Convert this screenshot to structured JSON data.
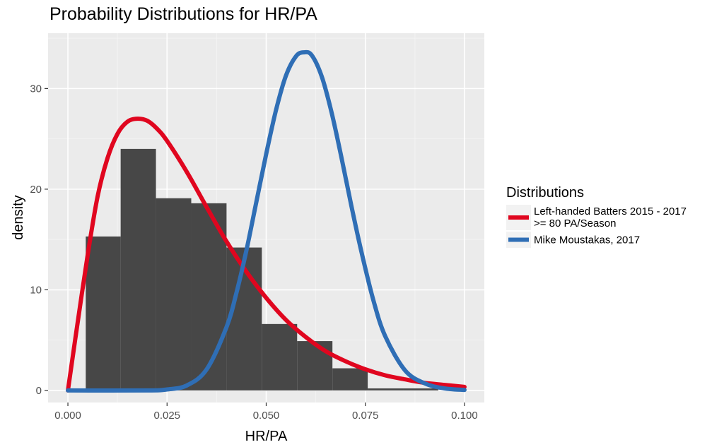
{
  "chart_data": {
    "type": "histogram+line",
    "title": "Probability Distributions for HR/PA",
    "xlabel": "HR/PA",
    "ylabel": "density",
    "xlim": [
      -0.005,
      0.105
    ],
    "ylim": [
      -1.2,
      35.5
    ],
    "x_ticks": [
      0.0,
      0.025,
      0.05,
      0.075,
      0.1
    ],
    "x_tick_labels": [
      "0.000",
      "0.025",
      "0.050",
      "0.075",
      "0.100"
    ],
    "y_ticks": [
      0,
      10,
      20,
      30
    ],
    "y_tick_labels": [
      "0",
      "10",
      "20",
      "30"
    ],
    "grid": true,
    "histogram": {
      "color": "#474747",
      "bins": [
        {
          "x0": 0.0045,
          "x1": 0.0133,
          "density": 15.3
        },
        {
          "x0": 0.0133,
          "x1": 0.0222,
          "density": 24.0
        },
        {
          "x0": 0.0222,
          "x1": 0.0311,
          "density": 19.1
        },
        {
          "x0": 0.0311,
          "x1": 0.04,
          "density": 18.6
        },
        {
          "x0": 0.04,
          "x1": 0.0489,
          "density": 14.2
        },
        {
          "x0": 0.0489,
          "x1": 0.0578,
          "density": 6.6
        },
        {
          "x0": 0.0578,
          "x1": 0.0667,
          "density": 4.9
        },
        {
          "x0": 0.0667,
          "x1": 0.0756,
          "density": 2.2
        },
        {
          "x0": 0.0756,
          "x1": 0.0845,
          "density": 0.2
        },
        {
          "x0": 0.0845,
          "x1": 0.0934,
          "density": 0.2
        }
      ]
    },
    "series": [
      {
        "name": "Left-handed Batters 2015 - 2017 >= 80 PA/Season",
        "legend_lines": [
          "Left-handed Batters 2015 - 2017",
          ">= 80 PA/Season"
        ],
        "color": "#e0061f",
        "x": [
          0.0,
          0.002,
          0.005,
          0.0075,
          0.01,
          0.0125,
          0.015,
          0.0175,
          0.02,
          0.0225,
          0.025,
          0.03,
          0.035,
          0.04,
          0.045,
          0.05,
          0.055,
          0.06,
          0.065,
          0.07,
          0.075,
          0.08,
          0.085,
          0.09,
          0.095,
          0.1
        ],
        "y": [
          0.0,
          5.5,
          13.5,
          19.3,
          23.1,
          25.5,
          26.7,
          27.0,
          26.8,
          26.0,
          24.8,
          21.7,
          18.2,
          14.8,
          11.8,
          9.2,
          7.0,
          5.3,
          3.9,
          2.9,
          2.1,
          1.5,
          1.1,
          0.75,
          0.55,
          0.35
        ]
      },
      {
        "name": "Mike Moustakas, 2017",
        "legend_lines": [
          "Mike Moustakas, 2017"
        ],
        "color": "#2f6eb5",
        "x": [
          0.0,
          0.02,
          0.025,
          0.03,
          0.035,
          0.04,
          0.0425,
          0.045,
          0.0475,
          0.05,
          0.0525,
          0.055,
          0.0575,
          0.0595,
          0.0615,
          0.064,
          0.0665,
          0.069,
          0.0715,
          0.074,
          0.077,
          0.08,
          0.085,
          0.09,
          0.095,
          0.1
        ],
        "y": [
          0.0,
          0.0,
          0.1,
          0.5,
          2.1,
          6.3,
          9.7,
          13.9,
          18.7,
          23.5,
          27.9,
          31.3,
          33.2,
          33.6,
          33.3,
          31.2,
          27.6,
          23.1,
          18.3,
          13.8,
          9.0,
          5.4,
          2.0,
          0.7,
          0.2,
          0.05
        ]
      }
    ],
    "legend": {
      "title": "Distributions",
      "placement": "right"
    }
  }
}
